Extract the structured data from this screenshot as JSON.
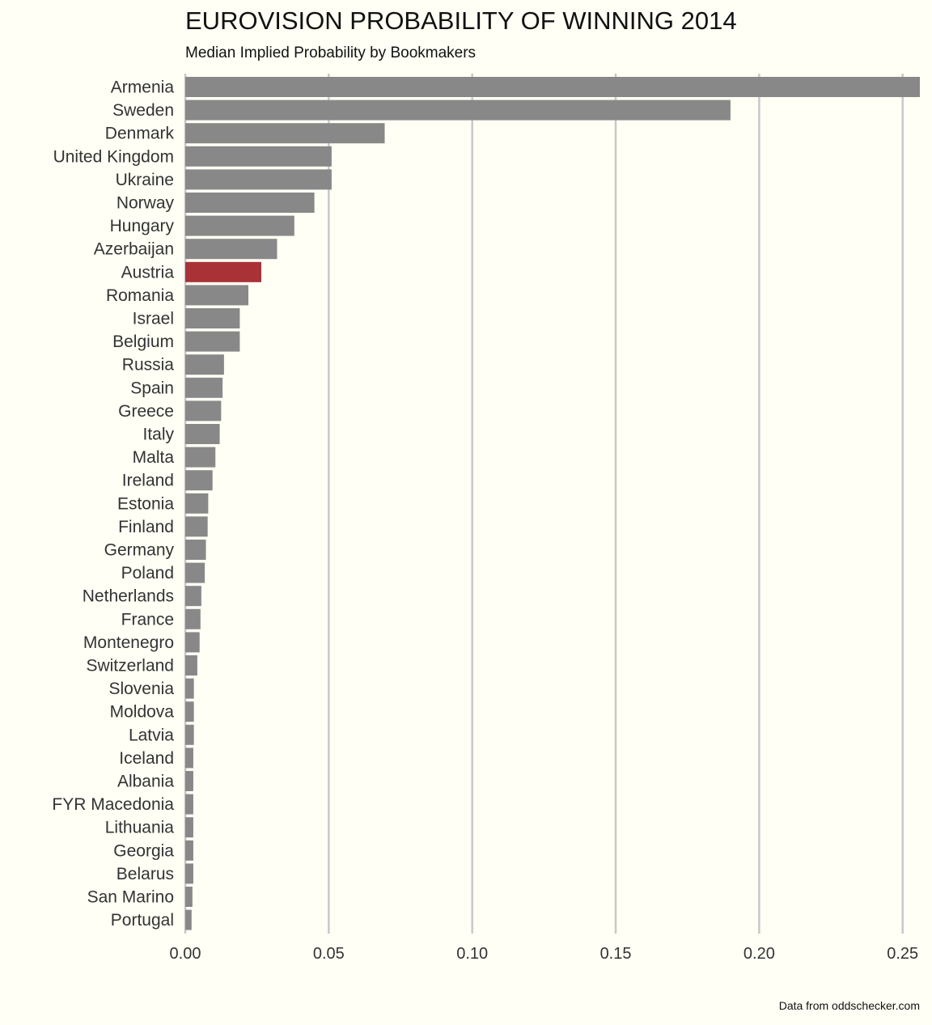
{
  "chart_data": {
    "type": "bar",
    "orientation": "horizontal",
    "title": "EUROVISION PROBABILITY OF WINNING 2014",
    "subtitle": "Median Implied Probability by Bookmakers",
    "caption": "Data from oddschecker.com",
    "xlim": [
      0,
      0.256
    ],
    "xticks": [
      0,
      0.05,
      0.1,
      0.15,
      0.2,
      0.25
    ],
    "xtick_labels": [
      "0.00",
      "0.05",
      "0.10",
      "0.15",
      "0.20",
      "0.25"
    ],
    "grid": "vertical",
    "bar_color": "#888888",
    "highlight_color": "#a83236",
    "highlight": "Austria",
    "categories": [
      "Armenia",
      "Sweden",
      "Denmark",
      "United Kingdom",
      "Ukraine",
      "Norway",
      "Hungary",
      "Azerbaijan",
      "Austria",
      "Romania",
      "Israel",
      "Belgium",
      "Russia",
      "Spain",
      "Greece",
      "Italy",
      "Malta",
      "Ireland",
      "Estonia",
      "Finland",
      "Germany",
      "Poland",
      "Netherlands",
      "France",
      "Montenegro",
      "Switzerland",
      "Slovenia",
      "Moldova",
      "Latvia",
      "Iceland",
      "Albania",
      "FYR Macedonia",
      "Lithuania",
      "Georgia",
      "Belarus",
      "San Marino",
      "Portugal"
    ],
    "values": [
      0.256,
      0.19,
      0.0695,
      0.051,
      0.051,
      0.045,
      0.038,
      0.032,
      0.0265,
      0.022,
      0.019,
      0.019,
      0.0135,
      0.013,
      0.0125,
      0.012,
      0.0105,
      0.0095,
      0.008,
      0.0078,
      0.0072,
      0.0068,
      0.0056,
      0.0053,
      0.005,
      0.0042,
      0.003,
      0.003,
      0.003,
      0.0028,
      0.0028,
      0.0028,
      0.0028,
      0.0028,
      0.0028,
      0.0025,
      0.0022
    ]
  }
}
